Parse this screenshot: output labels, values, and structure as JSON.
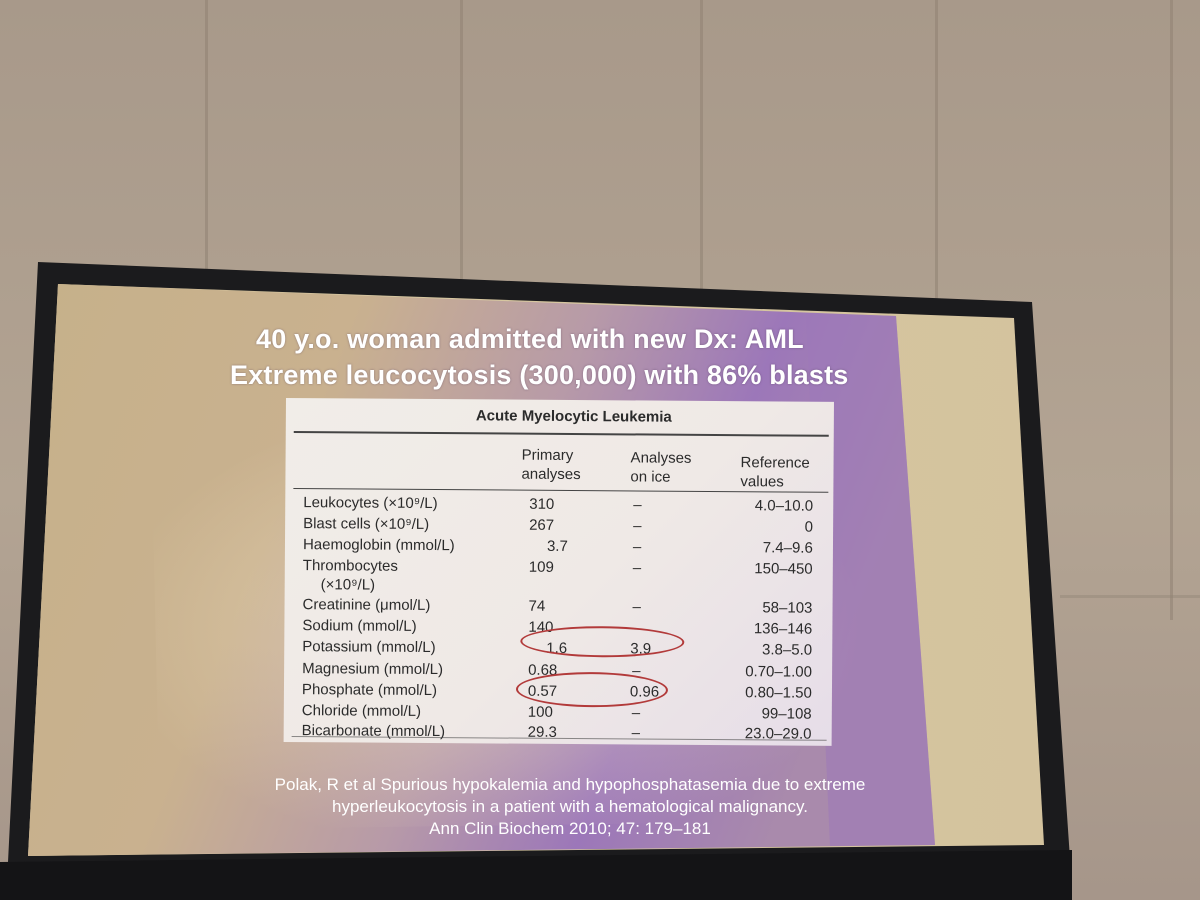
{
  "slide": {
    "title_line1": "40 y.o. woman admitted with new Dx: AML",
    "title_line2": "Extreme leucocytosis (300,000) with 86% blasts"
  },
  "table": {
    "caption": "Acute Myelocytic Leukemia",
    "headers": {
      "primary": [
        "Primary",
        "analyses"
      ],
      "ice": [
        "Analyses",
        "on ice"
      ],
      "reference": [
        "Reference",
        "values"
      ]
    },
    "rows": [
      {
        "label": "Leukocytes (×10⁹/L)",
        "primary": "310",
        "ice": "–",
        "reference": "4.0–10.0"
      },
      {
        "label": "Blast cells (×10⁹/L)",
        "primary": "267",
        "ice": "–",
        "reference": "0"
      },
      {
        "label": "Haemoglobin (mmol/L)",
        "primary": "3.7",
        "ice": "–",
        "reference": "7.4–9.6"
      },
      {
        "label": "Thrombocytes",
        "label2": "(×10⁹/L)",
        "primary": "109",
        "ice": "–",
        "reference": "150–450"
      },
      {
        "label": "Creatinine (μmol/L)",
        "primary": "74",
        "ice": "–",
        "reference": "58–103"
      },
      {
        "label": "Sodium (mmol/L)",
        "primary": "140",
        "ice": "",
        "reference": "136–146"
      },
      {
        "label": "Potassium (mmol/L)",
        "primary": "1.6",
        "ice": "3.9",
        "reference": "3.8–5.0"
      },
      {
        "label": "Magnesium (mmol/L)",
        "primary": "0.68",
        "ice": "–",
        "reference": "0.70–1.00"
      },
      {
        "label": "Phosphate (mmol/L)",
        "primary": "0.57",
        "ice": "0.96",
        "reference": "0.80–1.50"
      },
      {
        "label": "Chloride (mmol/L)",
        "primary": "100",
        "ice": "–",
        "reference": "99–108"
      },
      {
        "label": "Bicarbonate (mmol/L)",
        "primary": "29.3",
        "ice": "–",
        "reference": "23.0–29.0"
      }
    ]
  },
  "citation": {
    "line1": "Polak, R et al  Spurious hypokalemia and hypophosphatasemia due to extreme",
    "line2": "hyperleukocytosis in a patient with a hematological malignancy.",
    "line3": "Ann Clin Biochem 2010; 47: 179–181"
  },
  "colors": {
    "slide_warm": "#c7b48c",
    "slide_purple": "#9a74b8",
    "ring_red": "#b23a3a",
    "frame": "#1b1b1d"
  }
}
